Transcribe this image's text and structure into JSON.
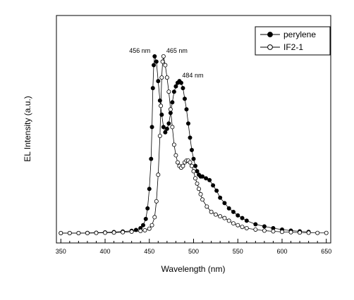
{
  "chart_data": {
    "type": "scatter",
    "xlabel": "Wavelength (nm)",
    "ylabel": "EL Intensity (a.u.)",
    "xlim": [
      345,
      655
    ],
    "ylim": [
      0,
      1.08
    ],
    "xticks": [
      350,
      400,
      450,
      500,
      550,
      600,
      650
    ],
    "grid": false,
    "legend_position": "top-right",
    "series": [
      {
        "name": "perylene",
        "marker": "filled-circle",
        "color": "#000000",
        "points": [
          [
            350,
            0.0
          ],
          [
            360,
            0.0
          ],
          [
            370,
            0.0
          ],
          [
            380,
            0.001
          ],
          [
            390,
            0.002
          ],
          [
            400,
            0.004
          ],
          [
            410,
            0.006
          ],
          [
            420,
            0.009
          ],
          [
            430,
            0.013
          ],
          [
            435,
            0.018
          ],
          [
            440,
            0.028
          ],
          [
            443,
            0.045
          ],
          [
            446,
            0.08
          ],
          [
            448,
            0.14
          ],
          [
            450,
            0.25
          ],
          [
            452,
            0.42
          ],
          [
            453,
            0.6
          ],
          [
            454,
            0.82
          ],
          [
            455,
            0.95
          ],
          [
            456,
            1.0
          ],
          [
            458,
            0.97
          ],
          [
            460,
            0.86
          ],
          [
            462,
            0.75
          ],
          [
            464,
            0.67
          ],
          [
            466,
            0.6
          ],
          [
            468,
            0.57
          ],
          [
            470,
            0.59
          ],
          [
            472,
            0.62
          ],
          [
            474,
            0.68
          ],
          [
            476,
            0.74
          ],
          [
            478,
            0.8
          ],
          [
            480,
            0.83
          ],
          [
            482,
            0.85
          ],
          [
            484,
            0.86
          ],
          [
            486,
            0.85
          ],
          [
            488,
            0.82
          ],
          [
            490,
            0.76
          ],
          [
            492,
            0.7
          ],
          [
            494,
            0.62
          ],
          [
            496,
            0.54
          ],
          [
            498,
            0.47
          ],
          [
            500,
            0.42
          ],
          [
            502,
            0.38
          ],
          [
            504,
            0.35
          ],
          [
            506,
            0.33
          ],
          [
            508,
            0.32
          ],
          [
            510,
            0.32
          ],
          [
            514,
            0.31
          ],
          [
            518,
            0.3
          ],
          [
            522,
            0.27
          ],
          [
            526,
            0.24
          ],
          [
            530,
            0.2
          ],
          [
            535,
            0.17
          ],
          [
            540,
            0.14
          ],
          [
            545,
            0.12
          ],
          [
            550,
            0.1
          ],
          [
            555,
            0.085
          ],
          [
            560,
            0.07
          ],
          [
            570,
            0.05
          ],
          [
            580,
            0.038
          ],
          [
            590,
            0.028
          ],
          [
            600,
            0.02
          ],
          [
            610,
            0.014
          ],
          [
            620,
            0.01
          ],
          [
            630,
            0.007
          ]
        ]
      },
      {
        "name": "IF2-1",
        "marker": "open-circle",
        "color": "#000000",
        "points": [
          [
            350,
            0.0
          ],
          [
            360,
            0.0
          ],
          [
            370,
            0.0
          ],
          [
            380,
            0.0
          ],
          [
            390,
            0.001
          ],
          [
            400,
            0.002
          ],
          [
            410,
            0.003
          ],
          [
            420,
            0.005
          ],
          [
            430,
            0.008
          ],
          [
            440,
            0.012
          ],
          [
            445,
            0.016
          ],
          [
            450,
            0.025
          ],
          [
            453,
            0.045
          ],
          [
            456,
            0.09
          ],
          [
            458,
            0.18
          ],
          [
            460,
            0.33
          ],
          [
            462,
            0.55
          ],
          [
            463,
            0.72
          ],
          [
            464,
            0.88
          ],
          [
            465,
            0.97
          ],
          [
            466,
            1.0
          ],
          [
            468,
            0.95
          ],
          [
            470,
            0.88
          ],
          [
            472,
            0.8
          ],
          [
            474,
            0.7
          ],
          [
            476,
            0.6
          ],
          [
            478,
            0.5
          ],
          [
            480,
            0.44
          ],
          [
            482,
            0.4
          ],
          [
            484,
            0.38
          ],
          [
            486,
            0.37
          ],
          [
            488,
            0.38
          ],
          [
            490,
            0.4
          ],
          [
            492,
            0.41
          ],
          [
            494,
            0.41
          ],
          [
            496,
            0.4
          ],
          [
            498,
            0.38
          ],
          [
            500,
            0.35
          ],
          [
            502,
            0.31
          ],
          [
            504,
            0.28
          ],
          [
            506,
            0.25
          ],
          [
            508,
            0.22
          ],
          [
            510,
            0.19
          ],
          [
            515,
            0.15
          ],
          [
            520,
            0.12
          ],
          [
            525,
            0.105
          ],
          [
            530,
            0.095
          ],
          [
            535,
            0.085
          ],
          [
            540,
            0.07
          ],
          [
            545,
            0.055
          ],
          [
            550,
            0.045
          ],
          [
            555,
            0.035
          ],
          [
            560,
            0.028
          ],
          [
            570,
            0.02
          ],
          [
            580,
            0.014
          ],
          [
            590,
            0.01
          ],
          [
            600,
            0.007
          ],
          [
            610,
            0.005
          ],
          [
            620,
            0.003
          ],
          [
            630,
            0.002
          ],
          [
            640,
            0.001
          ],
          [
            650,
            0.001
          ]
        ]
      }
    ],
    "annotations": [
      {
        "text": "456 nm",
        "x": 456,
        "y": 1.0,
        "anchor": "end"
      },
      {
        "text": "465 nm",
        "x": 466,
        "y": 1.0,
        "anchor": "start"
      },
      {
        "text": "484 nm",
        "x": 484,
        "y": 0.86,
        "anchor": "start"
      }
    ]
  }
}
